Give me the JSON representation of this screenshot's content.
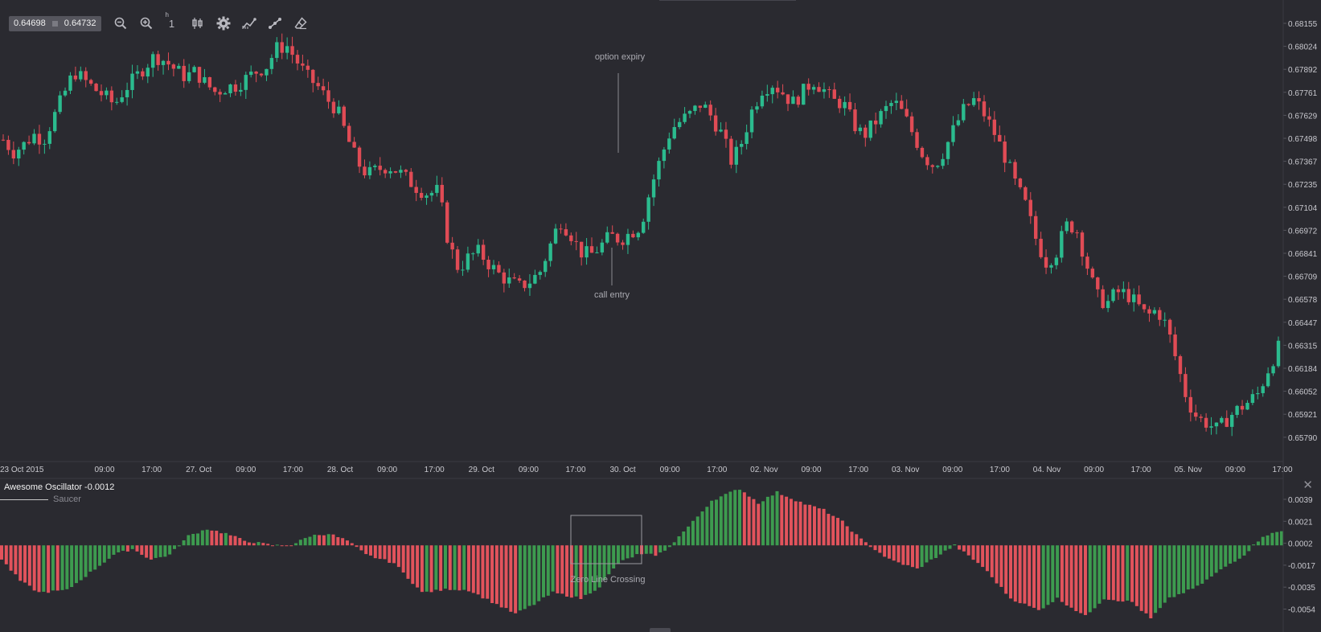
{
  "toolbar": {
    "bid": "0.64698",
    "ask": "0.64732",
    "interval_value": "1",
    "interval_unit": "h",
    "tools": [
      "zoom-out-icon",
      "zoom-in-icon",
      "interval",
      "candles-icon",
      "gear-icon",
      "indicators-icon",
      "drawing-icon",
      "eraser-icon"
    ]
  },
  "colors": {
    "background": "#2a2a30",
    "up": "#2bbb8e",
    "down": "#e04b55",
    "ao_up": "#3d9b4f",
    "ao_down": "#e2535c",
    "grid_text": "#c9c9cf"
  },
  "oscillator": {
    "title": "Awesome Oscillator -0.0012",
    "legend_label": "Saucer"
  },
  "annotations": {
    "option_expiry": "option expiry",
    "call_entry": "call entry",
    "zero_line_crossing": "Zero Line Crossing"
  },
  "chart_data": [
    {
      "type": "candlestick",
      "xlabel": "",
      "ylabel": "",
      "ylim": [
        0.6565,
        0.6823
      ],
      "y_ticks": [
        "0.68155",
        "0.68024",
        "0.67892",
        "0.67761",
        "0.67629",
        "0.67498",
        "0.67367",
        "0.67235",
        "0.67104",
        "0.66972",
        "0.66841",
        "0.66709",
        "0.66578",
        "0.66447",
        "0.66315",
        "0.66184",
        "0.66052",
        "0.65921",
        "0.65790"
      ],
      "x_ticks": [
        "23 Oct 2015",
        "09:00",
        "17:00",
        "27. Oct",
        "09:00",
        "17:00",
        "28. Oct",
        "09:00",
        "17:00",
        "29. Oct",
        "09:00",
        "17:00",
        "30. Oct",
        "09:00",
        "17:00",
        "02. Nov",
        "09:00",
        "17:00",
        "03. Nov",
        "09:00",
        "17:00",
        "04. Nov",
        "09:00",
        "17:00",
        "05. Nov",
        "09:00",
        "17:00"
      ],
      "close_path": [
        0.6749,
        0.6742,
        0.6746,
        0.6752,
        0.6749,
        0.6762,
        0.6775,
        0.6788,
        0.6783,
        0.6778,
        0.6774,
        0.6769,
        0.6778,
        0.6784,
        0.6791,
        0.6797,
        0.6794,
        0.6789,
        0.6785,
        0.6788,
        0.6781,
        0.6776,
        0.6779,
        0.678,
        0.6784,
        0.6788,
        0.6791,
        0.6801,
        0.6803,
        0.6794,
        0.6785,
        0.678,
        0.6772,
        0.6766,
        0.675,
        0.6736,
        0.6729,
        0.6732,
        0.6734,
        0.6731,
        0.6726,
        0.6721,
        0.6718,
        0.672,
        0.669,
        0.6675,
        0.6682,
        0.6685,
        0.6678,
        0.6672,
        0.6668,
        0.6665,
        0.6668,
        0.6673,
        0.6688,
        0.6703,
        0.6696,
        0.6685,
        0.6683,
        0.6688,
        0.6694,
        0.6692,
        0.6696,
        0.67,
        0.6722,
        0.6739,
        0.6755,
        0.676,
        0.6764,
        0.677,
        0.6762,
        0.6752,
        0.6736,
        0.6748,
        0.6766,
        0.6778,
        0.6781,
        0.6776,
        0.677,
        0.6776,
        0.6783,
        0.6778,
        0.6771,
        0.677,
        0.6758,
        0.6751,
        0.6758,
        0.6765,
        0.6771,
        0.6763,
        0.6751,
        0.6739,
        0.6734,
        0.6743,
        0.6756,
        0.6767,
        0.6772,
        0.6763,
        0.6752,
        0.6739,
        0.6724,
        0.6712,
        0.6693,
        0.6679,
        0.6684,
        0.67,
        0.6699,
        0.6679,
        0.666,
        0.6655,
        0.6662,
        0.6661,
        0.6655,
        0.6648,
        0.6652,
        0.6642,
        0.6621,
        0.66,
        0.659,
        0.6587,
        0.6583,
        0.659,
        0.6595,
        0.6599,
        0.6604,
        0.6618,
        0.663
      ],
      "axis_labels": [
        "0.68155",
        "0.68024",
        "0.67892",
        "0.67761",
        "0.67629",
        "0.67498",
        "0.67367",
        "0.67235",
        "0.67104",
        "0.66972",
        "0.66841",
        "0.66709",
        "0.66578",
        "0.66447",
        "0.66315",
        "0.66184",
        "0.66052",
        "0.65921",
        "0.65790"
      ]
    },
    {
      "type": "bar",
      "title": "Awesome Oscillator -0.0012",
      "ylim": [
        -0.0063,
        0.0045
      ],
      "y_ticks": [
        "0.0039",
        "0.0021",
        "0.0002",
        "-0.0017",
        "-0.0035",
        "-0.0054"
      ],
      "profile": [
        [
          0,
          -0.0012
        ],
        [
          4,
          -0.003
        ],
        [
          8,
          -0.004
        ],
        [
          14,
          -0.0038
        ],
        [
          20,
          -0.002
        ],
        [
          24,
          -0.0008
        ],
        [
          28,
          -0.0003
        ],
        [
          32,
          -0.0012
        ],
        [
          36,
          -0.0008
        ],
        [
          40,
          0.0008
        ],
        [
          44,
          0.0014
        ],
        [
          48,
          0.001
        ],
        [
          52,
          0.0004
        ],
        [
          58,
          0.0
        ],
        [
          62,
          0.0
        ],
        [
          66,
          0.0008
        ],
        [
          70,
          0.001
        ],
        [
          74,
          0.0004
        ],
        [
          78,
          -0.0008
        ],
        [
          84,
          -0.0015
        ],
        [
          90,
          -0.004
        ],
        [
          96,
          -0.0037
        ],
        [
          100,
          -0.0038
        ],
        [
          106,
          -0.005
        ],
        [
          110,
          -0.0058
        ],
        [
          114,
          -0.005
        ],
        [
          118,
          -0.004
        ],
        [
          124,
          -0.0045
        ],
        [
          128,
          -0.0035
        ],
        [
          132,
          -0.0015
        ],
        [
          136,
          -0.0008
        ],
        [
          140,
          -0.0008
        ],
        [
          142,
          -0.0005
        ],
        [
          148,
          0.002
        ],
        [
          152,
          0.0038
        ],
        [
          158,
          0.0048
        ],
        [
          162,
          0.0036
        ],
        [
          166,
          0.0045
        ],
        [
          172,
          0.0035
        ],
        [
          176,
          0.003
        ],
        [
          180,
          0.002
        ],
        [
          184,
          0.0005
        ],
        [
          190,
          -0.0012
        ],
        [
          196,
          -0.002
        ],
        [
          200,
          -0.001
        ],
        [
          204,
          0.0
        ],
        [
          210,
          -0.0018
        ],
        [
          216,
          -0.0045
        ],
        [
          222,
          -0.0055
        ],
        [
          226,
          -0.0045
        ],
        [
          232,
          -0.006
        ],
        [
          236,
          -0.0045
        ],
        [
          242,
          -0.0048
        ],
        [
          246,
          -0.0062
        ],
        [
          250,
          -0.0045
        ],
        [
          256,
          -0.0035
        ],
        [
          262,
          -0.0018
        ],
        [
          266,
          -0.0008
        ],
        [
          270,
          0.0008
        ],
        [
          274,
          0.0012
        ]
      ]
    }
  ]
}
